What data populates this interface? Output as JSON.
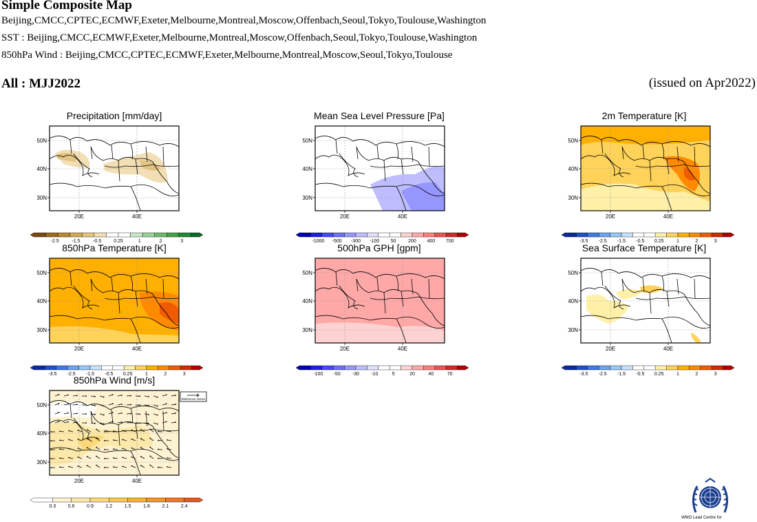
{
  "header": {
    "title": "Simple Composite Map",
    "models_all": "Beijing,CMCC,CPTEC,ECMWF,Exeter,Melbourne,Montreal,Moscow,Offenbach,Seoul,Tokyo,Toulouse,Washington",
    "models_sst": "SST : Beijing,CMCC,ECMWF,Exeter,Melbourne,Montreal,Moscow,Offenbach,Seoul,Tokyo,Toulouse,Washington",
    "models_wind": "850hPa Wind : Beijing,CMCC,CPTEC,ECMWF,Exeter,Melbourne,Montreal,Moscow,Seoul,Tokyo,Toulouse",
    "season": "All : MJJ2022",
    "issued": "(issued on Apr2022)"
  },
  "map_axes": {
    "lat_labels": [
      "50N",
      "40N",
      "30N"
    ],
    "lon_labels": [
      "20E",
      "40E"
    ]
  },
  "colors": {
    "map_background": "#ffffff",
    "gridline": "#999999"
  },
  "panels": [
    {
      "title": "Precipitation [mm/day]",
      "colorbar_labels": [
        "-2.5",
        "-1.5",
        "-0.5",
        "0.25",
        "1",
        "2",
        "3"
      ],
      "palette": [
        "#7a4a0f",
        "#9c6a1e",
        "#b8892e",
        "#d2a852",
        "#e4c482",
        "#f3dfb5",
        "#ffffff",
        "#ffffff",
        "#c8e6c8",
        "#9bd09b",
        "#6fb96f",
        "#44a044",
        "#1e8a3a",
        "#0b6b2a"
      ]
    },
    {
      "title": "Mean Sea Level Pressure [Pa]",
      "colorbar_labels": [
        "-1000",
        "-500",
        "-300",
        "-100",
        "50",
        "200",
        "400",
        "700"
      ],
      "palette": [
        "#0000b4",
        "#1e1ee6",
        "#4646ff",
        "#6e6eff",
        "#9696ff",
        "#bebeff",
        "#e0e0ff",
        "#ffffff",
        "#ffffff",
        "#ffd2d2",
        "#ffa8a8",
        "#ff7e7e",
        "#f05050",
        "#d22828",
        "#b40000"
      ]
    },
    {
      "title": "2m Temperature [K]",
      "colorbar_labels": [
        "-3.5",
        "-2.5",
        "-1.5",
        "-0.5",
        "0.25",
        "1",
        "2",
        "3"
      ],
      "palette": [
        "#0a2ba0",
        "#1f4fd0",
        "#3d79ea",
        "#6aa3f2",
        "#98c6f7",
        "#c6e1fb",
        "#ffffff",
        "#ffffff",
        "#fff0a8",
        "#ffd35a",
        "#ffb000",
        "#ff8a00",
        "#f05a00",
        "#d22a00",
        "#b40000"
      ]
    },
    {
      "title": "850hPa Temperature [K]",
      "colorbar_labels": [
        "-3.5",
        "-2.5",
        "-1.5",
        "-0.5",
        "0.25",
        "1",
        "2",
        "3"
      ],
      "palette": [
        "#0a2ba0",
        "#1f4fd0",
        "#3d79ea",
        "#6aa3f2",
        "#98c6f7",
        "#c6e1fb",
        "#ffffff",
        "#ffffff",
        "#fff0a8",
        "#ffd35a",
        "#ffb000",
        "#ff8a00",
        "#f05a00",
        "#d22a00",
        "#b40000"
      ]
    },
    {
      "title": "500hPa GPH [gpm]",
      "colorbar_labels": [
        "-100",
        "-50",
        "-30",
        "-10",
        "5",
        "20",
        "40",
        "70"
      ],
      "palette": [
        "#0000b4",
        "#1e1ee6",
        "#4646ff",
        "#6e6eff",
        "#9696ff",
        "#bebeff",
        "#e0e0ff",
        "#ffffff",
        "#ffffff",
        "#ffd2d2",
        "#ffa8a8",
        "#ff7e7e",
        "#f05050",
        "#d22828",
        "#b40000"
      ]
    },
    {
      "title": "Sea Surface Temperature [K]",
      "colorbar_labels": [
        "-3.5",
        "-2.5",
        "-1.5",
        "-0.5",
        "0.25",
        "1",
        "2",
        "3"
      ],
      "palette": [
        "#0a2ba0",
        "#1f4fd0",
        "#3d79ea",
        "#6aa3f2",
        "#98c6f7",
        "#c6e1fb",
        "#ffffff",
        "#ffffff",
        "#fff0a8",
        "#ffd35a",
        "#ffb000",
        "#ff8a00",
        "#f05a00",
        "#d22a00",
        "#b40000"
      ]
    },
    {
      "title": "850hPa Wind [m/s]",
      "colorbar_labels": [
        "0.3",
        "0.6",
        "0.9",
        "1.2",
        "1.5",
        "1.8",
        "2.1",
        "2.4"
      ],
      "palette": [
        "#ffffff",
        "#fdf3d2",
        "#fce8a8",
        "#fbd97a",
        "#f9c84e",
        "#f6b230",
        "#f2952a",
        "#ec7828",
        "#e05a24"
      ],
      "reference_vector_label": "Reference Vector"
    }
  ],
  "logo": {
    "caption": "WMO Lead Centre for"
  }
}
